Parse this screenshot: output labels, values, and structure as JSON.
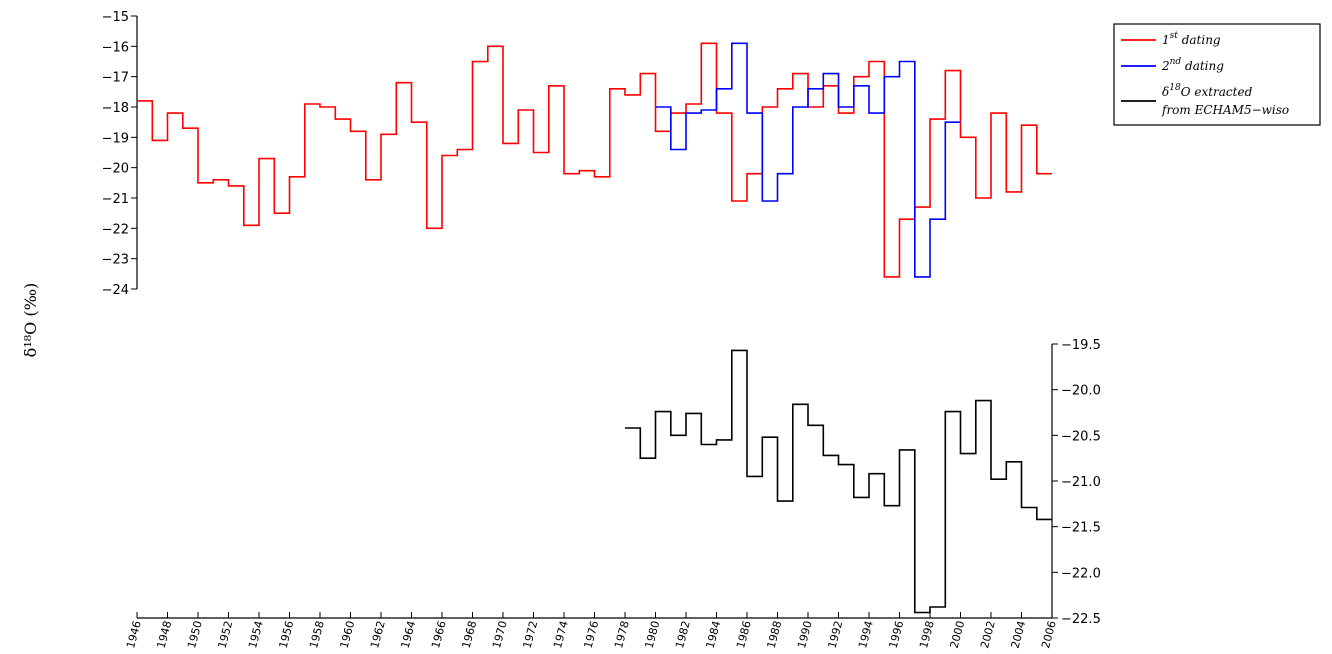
{
  "chart_data": {
    "type": "line",
    "step": "post",
    "ylabel": "δ¹⁸O (‰)",
    "x_ticks": [
      1946,
      1948,
      1950,
      1952,
      1954,
      1956,
      1958,
      1960,
      1962,
      1964,
      1966,
      1968,
      1970,
      1972,
      1974,
      1976,
      1978,
      1980,
      1982,
      1984,
      1986,
      1988,
      1990,
      1992,
      1994,
      1996,
      1998,
      2000,
      2002,
      2004,
      2006
    ],
    "xlim": [
      1946,
      2006
    ],
    "panels": [
      {
        "id": "top",
        "ylim": [
          -24,
          -15
        ],
        "y_ticks": [
          -15,
          -16,
          -17,
          -18,
          -19,
          -20,
          -21,
          -22,
          -23,
          -24
        ],
        "y_axis_side": "left",
        "legend_position": "top-right",
        "series": [
          {
            "name": "1st dating",
            "color": "#ff0000",
            "x": [
              1946,
              1947,
              1948,
              1949,
              1950,
              1951,
              1952,
              1953,
              1954,
              1955,
              1956,
              1957,
              1958,
              1959,
              1960,
              1961,
              1962,
              1963,
              1964,
              1965,
              1966,
              1967,
              1968,
              1969,
              1970,
              1971,
              1972,
              1973,
              1974,
              1975,
              1976,
              1977,
              1978,
              1979,
              1980,
              1981,
              1982,
              1983,
              1984,
              1985,
              1986,
              1987,
              1988,
              1989,
              1990,
              1991,
              1992,
              1993,
              1994,
              1995,
              1996,
              1997,
              1998,
              1999,
              2000,
              2001,
              2002,
              2003,
              2004,
              2005
            ],
            "y": [
              -17.8,
              -19.1,
              -18.2,
              -18.7,
              -20.5,
              -20.4,
              -20.6,
              -21.9,
              -19.7,
              -21.5,
              -20.3,
              -17.9,
              -18.0,
              -18.4,
              -18.8,
              -20.4,
              -18.9,
              -17.2,
              -18.5,
              -22.0,
              -19.6,
              -19.4,
              -16.5,
              -16.0,
              -19.2,
              -18.1,
              -19.5,
              -17.3,
              -20.2,
              -20.1,
              -20.3,
              -17.4,
              -17.6,
              -16.9,
              -18.8,
              -18.2,
              -17.9,
              -15.9,
              -18.2,
              -21.1,
              -20.2,
              -18.0,
              -17.4,
              -16.9,
              -18.0,
              -17.3,
              -18.2,
              -17.0,
              -16.5,
              -23.6,
              -21.7,
              -21.3,
              -18.4,
              -16.8,
              -19.0,
              -21.0,
              -18.2,
              -20.8,
              -18.6,
              -20.2
            ]
          },
          {
            "name": "2nd dating",
            "color": "#0000ff",
            "x": [
              1980,
              1981,
              1982,
              1983,
              1984,
              1985,
              1986,
              1987,
              1988,
              1989,
              1990,
              1991,
              1992,
              1993,
              1994,
              1995,
              1996,
              1997,
              1998,
              1999
            ],
            "y": [
              -18.0,
              -19.4,
              -18.2,
              -18.1,
              -17.4,
              -15.9,
              -18.2,
              -21.1,
              -20.2,
              -18.0,
              -17.4,
              -16.9,
              -18.0,
              -17.3,
              -18.2,
              -17.0,
              -16.5,
              -23.6,
              -21.7,
              -18.5
            ]
          }
        ]
      },
      {
        "id": "bottom",
        "ylim": [
          -22.5,
          -19.5
        ],
        "y_ticks": [
          "-19.5",
          "-20.0",
          "-20.5",
          "-21.0",
          "-21.5",
          "-22.0",
          "-22.5"
        ],
        "y_axis_side": "right",
        "series": [
          {
            "name": "δ18O extracted from ECHAM5-wiso",
            "color": "#000000",
            "x": [
              1978,
              1979,
              1980,
              1981,
              1982,
              1983,
              1984,
              1985,
              1986,
              1987,
              1988,
              1989,
              1990,
              1991,
              1992,
              1993,
              1994,
              1995,
              1996,
              1997,
              1998,
              1999,
              2000,
              2001,
              2002,
              2003,
              2004,
              2005
            ],
            "y": [
              -20.42,
              -20.75,
              -20.24,
              -20.5,
              -20.26,
              -20.6,
              -20.55,
              -19.57,
              -20.95,
              -20.52,
              -21.22,
              -20.16,
              -20.39,
              -20.72,
              -20.82,
              -21.18,
              -20.92,
              -21.27,
              -20.66,
              -22.44,
              -22.38,
              -20.24,
              -20.7,
              -20.12,
              -20.98,
              -20.79,
              -21.29,
              -21.42
            ]
          }
        ]
      }
    ],
    "legend": {
      "entries": [
        {
          "base": "1",
          "sup": "st",
          "rest": " dating",
          "color": "#ff0000"
        },
        {
          "base": "2",
          "sup": "nd",
          "rest": " dating",
          "color": "#0000ff"
        },
        {
          "line1_base": "δ",
          "line1_sup": "18",
          "line1_rest": "O extracted",
          "line2": "from ECHAM5−wiso",
          "color": "#000000"
        }
      ]
    }
  }
}
